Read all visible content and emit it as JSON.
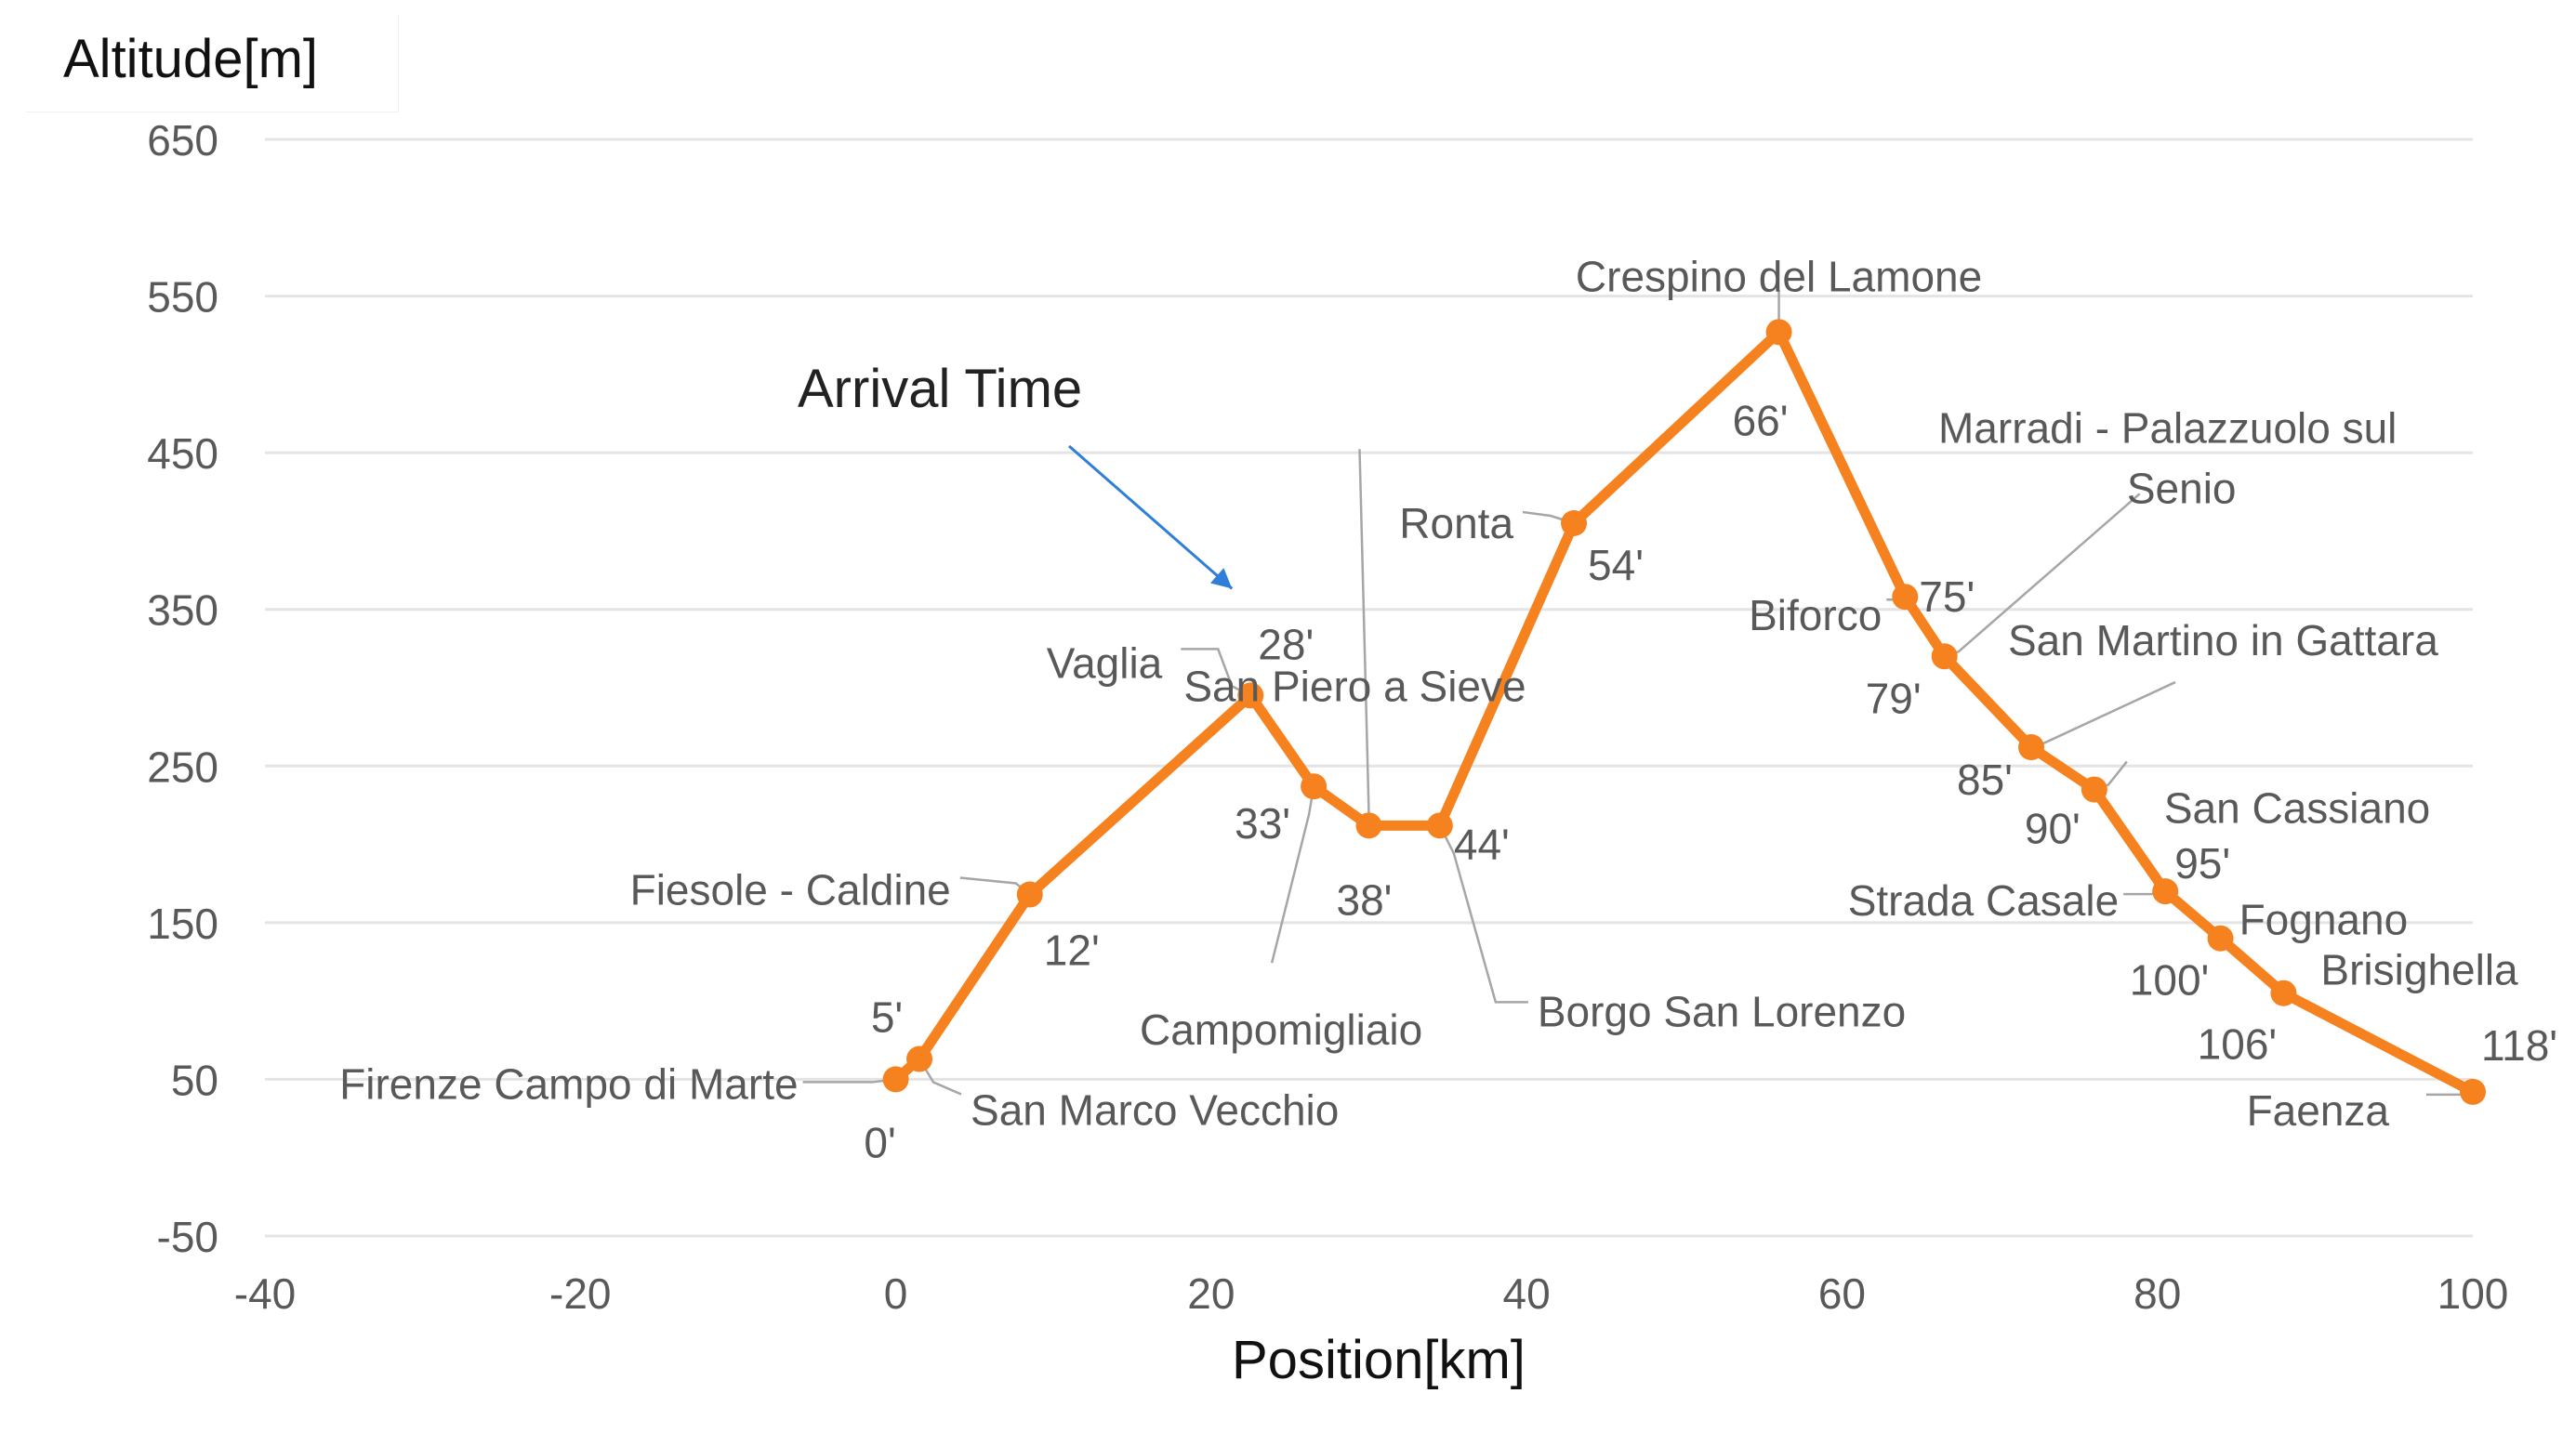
{
  "chart_data": {
    "type": "line",
    "title": "",
    "xlabel": "Position[km]",
    "ylabel": "Altitude[m]",
    "xlim": [
      -40,
      100
    ],
    "ylim": [
      -50,
      650
    ],
    "x_ticks": [
      -40,
      -20,
      0,
      20,
      40,
      60,
      80,
      100
    ],
    "y_ticks": [
      -50,
      50,
      150,
      250,
      350,
      450,
      550,
      650
    ],
    "grid": "horizontal",
    "line_color": "#F5821F",
    "callout": {
      "label": "Arrival Time",
      "target": "28'"
    },
    "series": [
      {
        "points": [
          {
            "x": 0,
            "y": 50,
            "station": "Firenze Campo di Marte",
            "time": "0'"
          },
          {
            "x": 1.5,
            "y": 63,
            "station": "San Marco Vecchio",
            "time": "5'"
          },
          {
            "x": 8.5,
            "y": 168,
            "station": "Fiesole - Caldine",
            "time": "12'"
          },
          {
            "x": 22.5,
            "y": 295,
            "station": "Vaglia",
            "time": "28'"
          },
          {
            "x": 26.5,
            "y": 237,
            "station": "Campomigliaio",
            "time": "33'"
          },
          {
            "x": 30,
            "y": 212,
            "station": "San Piero a Sieve",
            "time": "38'"
          },
          {
            "x": 34.5,
            "y": 212,
            "station": "Borgo San Lorenzo",
            "time": "44'"
          },
          {
            "x": 43,
            "y": 405,
            "station": "Ronta",
            "time": "54'"
          },
          {
            "x": 56,
            "y": 527,
            "station": "Crespino del Lamone",
            "time": "66'"
          },
          {
            "x": 64,
            "y": 358,
            "station": "Biforco",
            "time": "75'"
          },
          {
            "x": 66.5,
            "y": 320,
            "station": "Marradi - Palazzuolo sul Senio",
            "time": "79'"
          },
          {
            "x": 72,
            "y": 262,
            "station": "San Martino in Gattara",
            "time": "85'"
          },
          {
            "x": 76,
            "y": 235,
            "station": "San Cassiano",
            "time": "90'"
          },
          {
            "x": 80.5,
            "y": 170,
            "station": "Strada Casale",
            "time": "95'"
          },
          {
            "x": 84,
            "y": 140,
            "station": "Fognano",
            "time": "100'"
          },
          {
            "x": 88,
            "y": 105,
            "station": "Brisighella",
            "time": "106'"
          },
          {
            "x": 100,
            "y": 42,
            "station": "Faenza",
            "time": "118'"
          }
        ]
      }
    ]
  }
}
